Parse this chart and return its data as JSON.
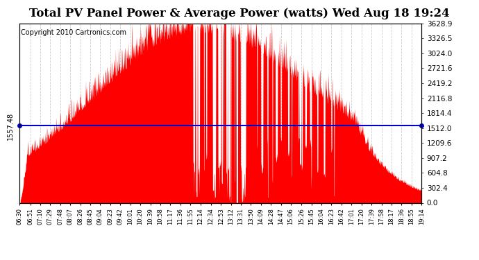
{
  "title": "Total PV Panel Power & Average Power (watts) Wed Aug 18 19:24",
  "copyright": "Copyright 2010 Cartronics.com",
  "average_power": 1557.48,
  "y_max": 3628.9,
  "y_min": 0.0,
  "y_ticks": [
    0.0,
    302.4,
    604.8,
    907.2,
    1209.6,
    1512.0,
    1814.4,
    2116.8,
    2419.2,
    2721.6,
    3024.0,
    3326.5,
    3628.9
  ],
  "x_labels": [
    "06:30",
    "06:51",
    "07:10",
    "07:29",
    "07:48",
    "08:07",
    "08:26",
    "08:45",
    "09:04",
    "09:23",
    "09:42",
    "10:01",
    "10:20",
    "10:39",
    "10:58",
    "11:17",
    "11:36",
    "11:55",
    "12:14",
    "12:34",
    "12:53",
    "13:12",
    "13:31",
    "13:50",
    "14:09",
    "14:28",
    "14:47",
    "15:06",
    "15:26",
    "15:45",
    "16:04",
    "16:23",
    "16:42",
    "17:01",
    "17:20",
    "17:39",
    "17:58",
    "18:17",
    "18:36",
    "18:55",
    "19:14"
  ],
  "bg_color": "#ffffff",
  "fill_color": "#ff0000",
  "line_color": "#0000cc",
  "grid_color": "#cccccc",
  "title_fontsize": 12,
  "copyright_fontsize": 7
}
